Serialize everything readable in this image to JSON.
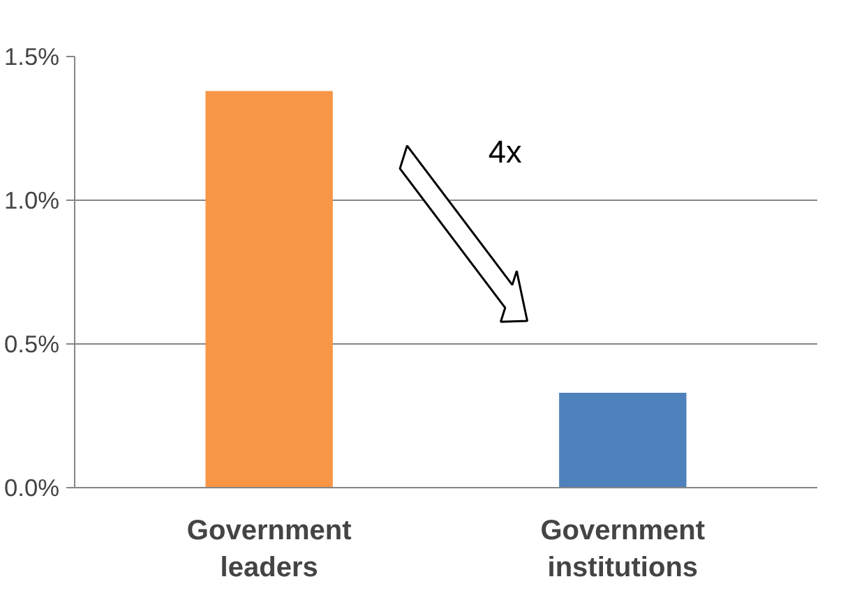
{
  "chart_data": {
    "type": "bar",
    "categories": [
      "Government\nleaders",
      "Government\ninstitutions"
    ],
    "values": [
      1.38,
      0.33
    ],
    "colors": [
      "#f79646",
      "#4f81bd"
    ],
    "ylim": [
      0,
      1.5
    ],
    "yticks": [
      {
        "value": 0,
        "label": "0.0%"
      },
      {
        "value": 0.5,
        "label": "0.5%"
      },
      {
        "value": 1.0,
        "label": "1.0%"
      },
      {
        "value": 1.5,
        "label": "1.5%"
      }
    ],
    "grid": "y",
    "annotations": [
      "4x"
    ]
  }
}
